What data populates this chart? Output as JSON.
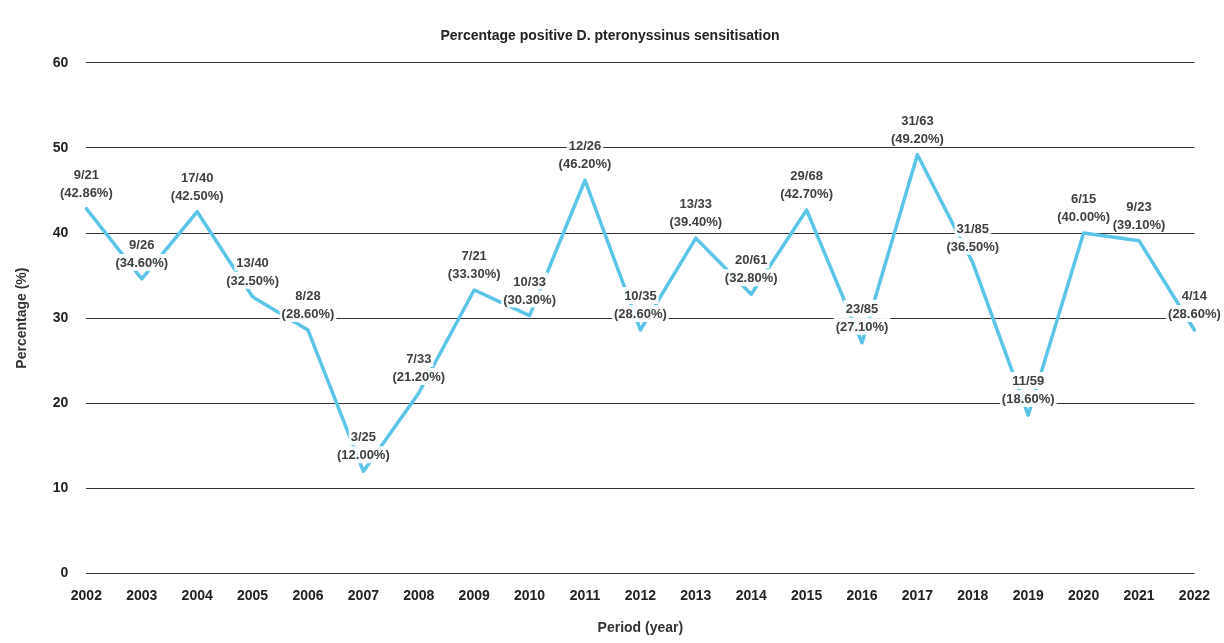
{
  "chart_data": {
    "type": "line",
    "title": "Percentage positive D. pteronyssinus sensitisation",
    "xlabel": "Period (year)",
    "ylabel": "Percentage (%)",
    "categories": [
      "2002",
      "2003",
      "2004",
      "2005",
      "2006",
      "2007",
      "2008",
      "2009",
      "2010",
      "2011",
      "2012",
      "2013",
      "2014",
      "2015",
      "2016",
      "2017",
      "2018",
      "2019",
      "2020",
      "2021",
      "2022"
    ],
    "series": [
      {
        "color": "#5bc5e8",
        "values": [
          42.86,
          34.6,
          42.5,
          32.5,
          28.6,
          12.0,
          21.2,
          33.3,
          30.3,
          46.2,
          28.6,
          39.4,
          32.8,
          42.7,
          27.1,
          49.2,
          36.5,
          18.6,
          40.0,
          39.1,
          28.6
        ],
        "value_labels": [
          "9/21 (42.86%)",
          "9/26 (34.60%)",
          "17/40 (42.50%)",
          "13/40 (32.50%)",
          "8/28 (28.60%)",
          "3/25 (12.00%)",
          "7/33 (21.20%)",
          "7/21 (33.30%)",
          "10/33 (30.30%)",
          "12/26 (46.20%)",
          "10/35 (28.60%)",
          "13/33 (39.40%)",
          "20/61 (32.80%)",
          "29/68 (42.70%)",
          "23/85 (27.10%)",
          "31/63 (49.20%)",
          "31/85 (36.50%)",
          "11/59 (18.60%)",
          "6/15 (40.00%)",
          "9/23 (39.10%)",
          "4/14 (28.60%)"
        ]
      }
    ],
    "ylim": [
      0,
      60
    ],
    "yticks": [
      0,
      10,
      20,
      30,
      40,
      50,
      60
    ],
    "grid": "y",
    "legend": false,
    "marker": "none",
    "line_style": "solid"
  }
}
